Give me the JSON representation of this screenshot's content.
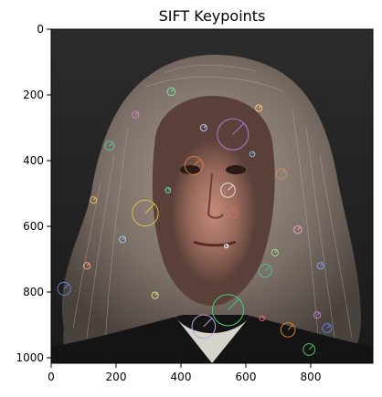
{
  "title": "SIFT Keypoints",
  "x_ticks": [
    "0",
    "200",
    "400",
    "600",
    "800"
  ],
  "y_ticks": [
    "0",
    "200",
    "400",
    "600",
    "800",
    "1000"
  ],
  "colors": {
    "frame": "#000000",
    "background": "#ffffff",
    "photo_bg": "#2a2a2a"
  },
  "keypoints": [
    {
      "x": 560,
      "y": 320,
      "r": 48,
      "c": "#b07ad8"
    },
    {
      "x": 290,
      "y": 560,
      "r": 40,
      "c": "#d8c050"
    },
    {
      "x": 545,
      "y": 855,
      "r": 48,
      "c": "#45d070"
    },
    {
      "x": 470,
      "y": 905,
      "r": 36,
      "c": "#c0a0e0"
    },
    {
      "x": 440,
      "y": 415,
      "r": 28,
      "c": "#d08040"
    },
    {
      "x": 545,
      "y": 490,
      "r": 22,
      "c": "#e0e0e0"
    },
    {
      "x": 560,
      "y": 560,
      "r": 14,
      "c": "#d07060"
    },
    {
      "x": 660,
      "y": 735,
      "r": 20,
      "c": "#50c0a0"
    },
    {
      "x": 730,
      "y": 915,
      "r": 22,
      "c": "#e08030"
    },
    {
      "x": 795,
      "y": 975,
      "r": 18,
      "c": "#50c060"
    },
    {
      "x": 850,
      "y": 910,
      "r": 14,
      "c": "#6080e0"
    },
    {
      "x": 180,
      "y": 355,
      "r": 14,
      "c": "#60c0a0"
    },
    {
      "x": 40,
      "y": 790,
      "r": 20,
      "c": "#6080d0"
    },
    {
      "x": 820,
      "y": 870,
      "r": 10,
      "c": "#c080e0"
    },
    {
      "x": 650,
      "y": 880,
      "r": 8,
      "c": "#e06080"
    },
    {
      "x": 320,
      "y": 810,
      "r": 10,
      "c": "#e0e080"
    },
    {
      "x": 540,
      "y": 660,
      "r": 6,
      "c": "#ffffff"
    },
    {
      "x": 710,
      "y": 440,
      "r": 16,
      "c": "#c09060"
    },
    {
      "x": 620,
      "y": 380,
      "r": 8,
      "c": "#80c0e0"
    },
    {
      "x": 690,
      "y": 680,
      "r": 10,
      "c": "#a0e080"
    },
    {
      "x": 760,
      "y": 610,
      "r": 12,
      "c": "#e0a0c0"
    },
    {
      "x": 220,
      "y": 640,
      "r": 10,
      "c": "#a0c0e0"
    },
    {
      "x": 130,
      "y": 520,
      "r": 10,
      "c": "#e0c060"
    },
    {
      "x": 360,
      "y": 490,
      "r": 8,
      "c": "#60e0c0"
    },
    {
      "x": 470,
      "y": 300,
      "r": 10,
      "c": "#c0c0ff"
    },
    {
      "x": 640,
      "y": 240,
      "r": 10,
      "c": "#ffc080"
    },
    {
      "x": 370,
      "y": 190,
      "r": 12,
      "c": "#80e0a0"
    },
    {
      "x": 260,
      "y": 260,
      "r": 10,
      "c": "#e080c0"
    },
    {
      "x": 830,
      "y": 720,
      "r": 10,
      "c": "#80a0ff"
    },
    {
      "x": 110,
      "y": 720,
      "r": 10,
      "c": "#ffa080"
    }
  ]
}
